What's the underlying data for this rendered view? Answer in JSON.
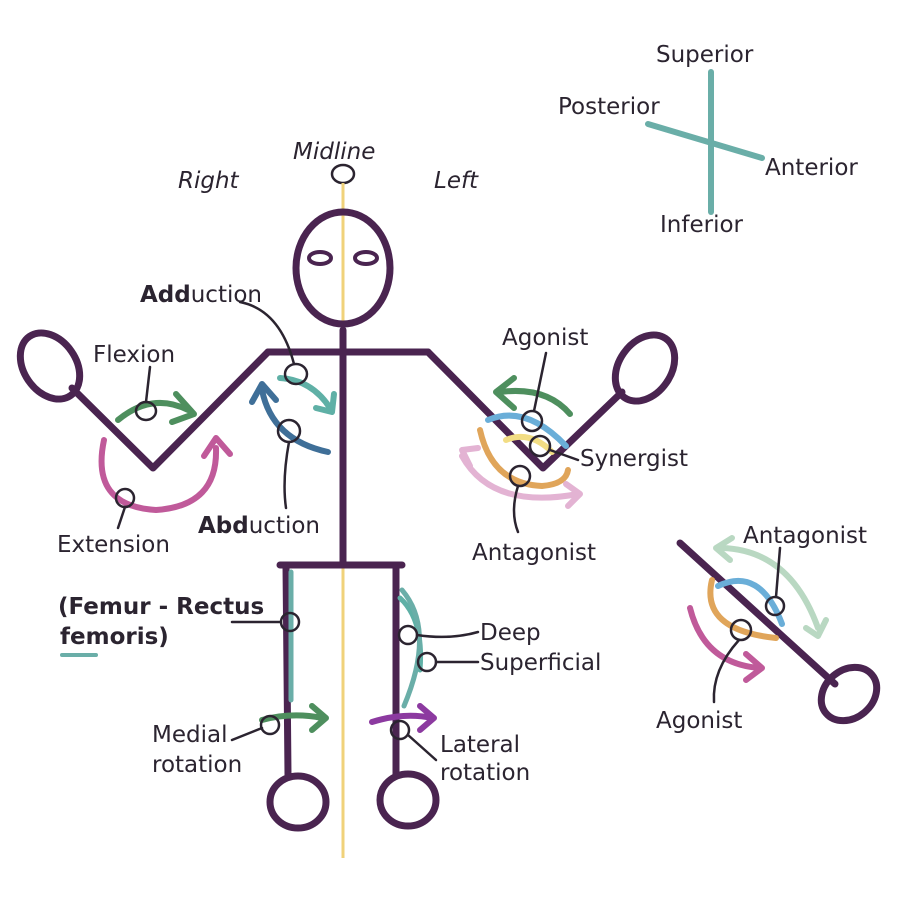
{
  "labels": {
    "superior": "Superior",
    "posterior": "Posterior",
    "anterior": "Anterior",
    "inferior": "Inferior",
    "midline": "Midline",
    "right": "Right",
    "left": "Left",
    "adduction_bold": "Add",
    "adduction_rest": "uction",
    "flexion": "Flexion",
    "extension": "Extension",
    "abduction_bold": "Abd",
    "abduction_rest": "uction",
    "agonist_arm": "Agonist",
    "synergist": "Synergist",
    "antagonist_arm": "Antagonist",
    "femur_line1": "(Femur - Rectus",
    "femur_line2": "femoris)",
    "deep": "Deep",
    "superficial": "Superficial",
    "medial_line1": "Medial",
    "medial_line2": "rotation",
    "lateral_line1": "Lateral",
    "lateral_line2": "rotation",
    "antagonist_limb": "Antagonist",
    "agonist_limb": "Agonist"
  },
  "colors": {
    "body": "#4a2450",
    "axis": "#6aaea8",
    "midline": "#f0d27a",
    "green": "#4e8f5e",
    "teal": "#5fb0a6",
    "blue": "#3f6f98",
    "magenta": "#c05a9a",
    "light_blue": "#6aaed8",
    "yellow": "#f2dd84",
    "orange": "#e0a55a",
    "pink": "#e3b3d3",
    "sage": "#b9d8c2",
    "purple": "#8c3aa0"
  }
}
